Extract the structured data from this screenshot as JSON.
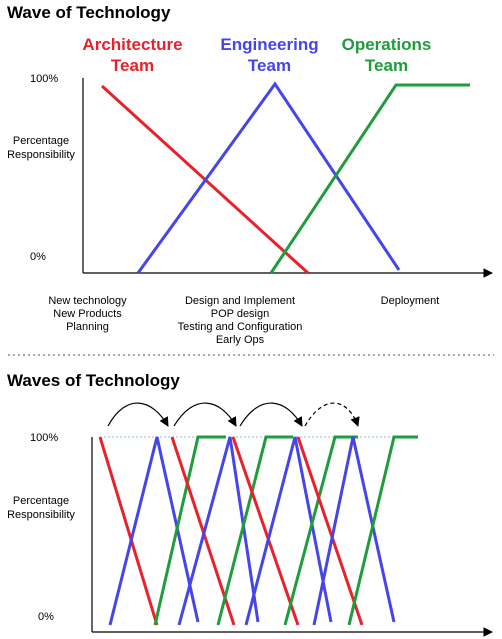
{
  "top": {
    "title": "Wave of Technology",
    "teams": [
      {
        "line1": "Architecture",
        "line2": "Team",
        "color": "#e8212b"
      },
      {
        "line1": "Engineering",
        "line2": "Team",
        "color": "#4545ea"
      },
      {
        "line1": "Operations",
        "line2": "Team",
        "color": "#1f9d3c"
      }
    ],
    "ylabel": [
      "Percentage",
      "Responsibility"
    ],
    "ytick_top": "100%",
    "ytick_bottom": "0%",
    "phases": [
      {
        "lines": [
          "New technology",
          "New Products",
          "Planning"
        ]
      },
      {
        "lines": [
          "Design and Implement",
          "POP design",
          "Testing and Configuration",
          "Early Ops"
        ]
      },
      {
        "lines": [
          "Deployment"
        ]
      }
    ]
  },
  "bottom": {
    "title": "Waves of Technology",
    "ylabel": [
      "Percentage",
      "Responsibility"
    ],
    "ytick_top": "100%",
    "ytick_bottom": "0%"
  },
  "colors": {
    "architecture": "#e8212b",
    "engineering": "#4545ea",
    "operations": "#1f9d3c",
    "axis": "#000000",
    "divider": "#555555"
  }
}
